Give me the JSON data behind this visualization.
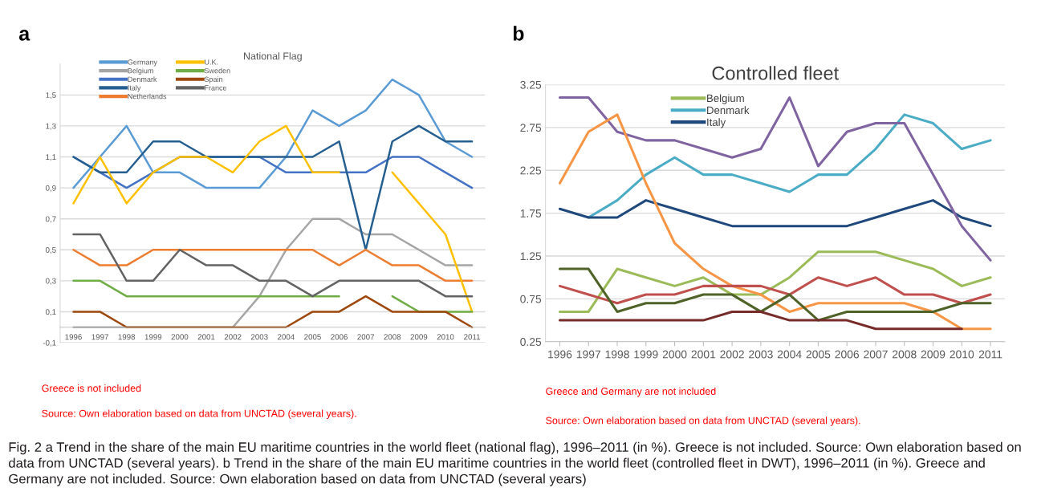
{
  "chart_data": [
    {
      "type": "line",
      "title": "National Flag",
      "categories": [
        "1996",
        "1997",
        "1998",
        "1999",
        "2000",
        "2001",
        "2002",
        "2003",
        "2004",
        "2005",
        "2006",
        "2007",
        "2008",
        "2009",
        "2010",
        "2011"
      ],
      "ylim": [
        -0.1,
        1.7
      ],
      "yticks": [
        {
          "value": -0.1,
          "label": "-0,1"
        },
        {
          "value": 0.1,
          "label": "0,1"
        },
        {
          "value": 0.3,
          "label": "0,3"
        },
        {
          "value": 0.5,
          "label": "0,5"
        },
        {
          "value": 0.7,
          "label": "0,7"
        },
        {
          "value": 0.9,
          "label": "0,9"
        },
        {
          "value": 1.1,
          "label": "1,1"
        },
        {
          "value": 1.3,
          "label": "1,3"
        },
        {
          "value": 1.5,
          "label": "1,5"
        }
      ],
      "grid": "y",
      "legend": "top left",
      "marker": "none",
      "line_style": "solid",
      "annotations": [
        "a",
        "Greece is not included",
        "Source: Own elaboration based on data from UNCTAD (several years).",
        "Fig. 2 a Trend in the share of the main EU maritime countries in the world fleet (national flag), 1996–2011 (in %). Greece is not included. Source: Own elaboration based on data from UNCTAD (several years). b Trend in the share of the main EU maritime countries in the world fleet (controlled fleet in DWT), 1996–2011 (in %). Greece and Germany are not included. Source: Own elaboration based on data from UNCTAD (several years)"
      ],
      "series": [
        {
          "name": "Germany",
          "color": "#5b9bd5",
          "values": [
            0.9,
            1.1,
            1.3,
            1.0,
            1.0,
            0.9,
            0.9,
            0.9,
            1.1,
            1.4,
            1.3,
            1.4,
            1.6,
            1.5,
            1.2,
            1.1
          ]
        },
        {
          "name": "Belgium",
          "color": "#a5a5a5",
          "values": [
            0,
            0,
            0,
            0,
            0,
            0,
            0,
            0.2,
            0.5,
            0.7,
            0.7,
            0.6,
            0.6,
            0.5,
            0.4,
            0.4
          ]
        },
        {
          "name": "Denmark",
          "color": "#4472c4",
          "values": [
            1.1,
            1.0,
            0.9,
            1.0,
            1.1,
            1.1,
            1.1,
            1.1,
            1.0,
            1.0,
            1.0,
            1.0,
            1.1,
            1.1,
            1.0,
            0.9
          ]
        },
        {
          "name": "Italy",
          "color": "#255e91",
          "values": [
            1.1,
            1.0,
            1.0,
            1.2,
            1.2,
            1.1,
            1.1,
            1.1,
            1.1,
            1.1,
            1.2,
            0.5,
            1.2,
            1.3,
            1.2,
            1.2
          ]
        },
        {
          "name": "Netherlands",
          "color": "#ed7d31",
          "values": [
            0.5,
            0.4,
            0.4,
            0.5,
            0.5,
            0.5,
            0.5,
            0.5,
            0.5,
            0.5,
            0.4,
            0.5,
            0.4,
            0.4,
            0.3,
            0.3
          ]
        },
        {
          "name": "U.K.",
          "color": "#ffc000",
          "values": [
            0.8,
            1.1,
            0.8,
            1.0,
            1.1,
            1.1,
            1.0,
            1.2,
            1.3,
            1.0,
            1.0,
            null,
            1.0,
            0.8,
            0.6,
            0.1
          ]
        },
        {
          "name": "Sweden",
          "color": "#70ad47",
          "values": [
            0.3,
            0.3,
            0.2,
            0.2,
            0.2,
            0.2,
            0.2,
            0.2,
            0.2,
            0.2,
            0.2,
            null,
            0.2,
            0.1,
            0.1,
            0.1
          ]
        },
        {
          "name": "Spain",
          "color": "#9e480e",
          "values": [
            0.1,
            0.1,
            0,
            0,
            0,
            0,
            0,
            0,
            0,
            0.1,
            0.1,
            0.2,
            0.1,
            0.1,
            0.1,
            0
          ]
        },
        {
          "name": "France",
          "color": "#636363",
          "values": [
            0.6,
            0.6,
            0.3,
            0.3,
            0.5,
            0.4,
            0.4,
            0.3,
            0.3,
            0.2,
            0.3,
            0.3,
            0.3,
            0.3,
            0.2,
            0.2
          ]
        }
      ]
    },
    {
      "type": "line",
      "title": "Controlled fleet",
      "categories": [
        "1996",
        "1997",
        "1998",
        "1999",
        "2000",
        "2001",
        "2002",
        "2003",
        "2004",
        "2005",
        "2006",
        "2007",
        "2008",
        "2009",
        "2010",
        "2011"
      ],
      "ylim": [
        0.25,
        3.25
      ],
      "yticks": [
        0.25,
        0.75,
        1.25,
        1.75,
        2.25,
        2.75,
        3.25
      ],
      "grid": "y",
      "legend": "top",
      "marker": "none",
      "line_style": "solid",
      "annotations": [
        "b",
        "Greece and Germany are not included",
        "Source: Own elaboration based on data from UNCTAD (several years)."
      ],
      "series": [
        {
          "name": "Belgium",
          "color": "#9bbb59",
          "values": [
            0.6,
            0.6,
            1.1,
            1.0,
            0.9,
            1.0,
            0.8,
            0.8,
            1.0,
            1.3,
            1.3,
            1.3,
            1.2,
            1.1,
            0.9,
            1.0
          ]
        },
        {
          "name": "Denmark",
          "color": "#4bacc6",
          "values": [
            null,
            1.7,
            1.9,
            2.2,
            2.4,
            2.2,
            2.2,
            2.1,
            2.0,
            2.2,
            2.2,
            2.5,
            2.9,
            2.8,
            2.5,
            2.6
          ]
        },
        {
          "name": "Italy",
          "color": "#1f497d",
          "values": [
            1.8,
            1.7,
            1.7,
            1.9,
            1.8,
            1.7,
            1.6,
            1.6,
            1.6,
            1.6,
            1.6,
            1.7,
            1.8,
            1.9,
            1.7,
            1.6
          ]
        },
        {
          "color": "#8064a2",
          "values": [
            3.1,
            3.1,
            2.7,
            2.6,
            2.6,
            2.5,
            2.4,
            2.5,
            3.1,
            2.3,
            2.7,
            2.8,
            2.8,
            2.2,
            1.6,
            1.2
          ]
        },
        {
          "color": "#f79646",
          "values": [
            2.1,
            2.7,
            2.9,
            2.1,
            1.4,
            1.1,
            0.9,
            0.8,
            0.6,
            0.7,
            0.7,
            0.7,
            0.7,
            0.6,
            0.4,
            0.4
          ]
        },
        {
          "color": "#c0504d",
          "values": [
            0.9,
            0.8,
            0.7,
            0.8,
            0.8,
            0.9,
            0.9,
            0.9,
            0.8,
            1.0,
            0.9,
            1.0,
            0.8,
            0.8,
            0.7,
            0.8
          ]
        },
        {
          "color": "#4f6228",
          "values": [
            1.1,
            1.1,
            0.6,
            0.7,
            0.7,
            0.8,
            0.8,
            0.6,
            0.8,
            0.5,
            0.6,
            0.6,
            0.6,
            0.6,
            0.7,
            0.7
          ]
        },
        {
          "color": "#772c2a",
          "values": [
            0.5,
            0.5,
            0.5,
            0.5,
            0.5,
            0.5,
            0.6,
            0.6,
            0.5,
            0.5,
            0.5,
            0.4,
            0.4,
            0.4,
            0.4,
            null
          ]
        }
      ]
    }
  ]
}
